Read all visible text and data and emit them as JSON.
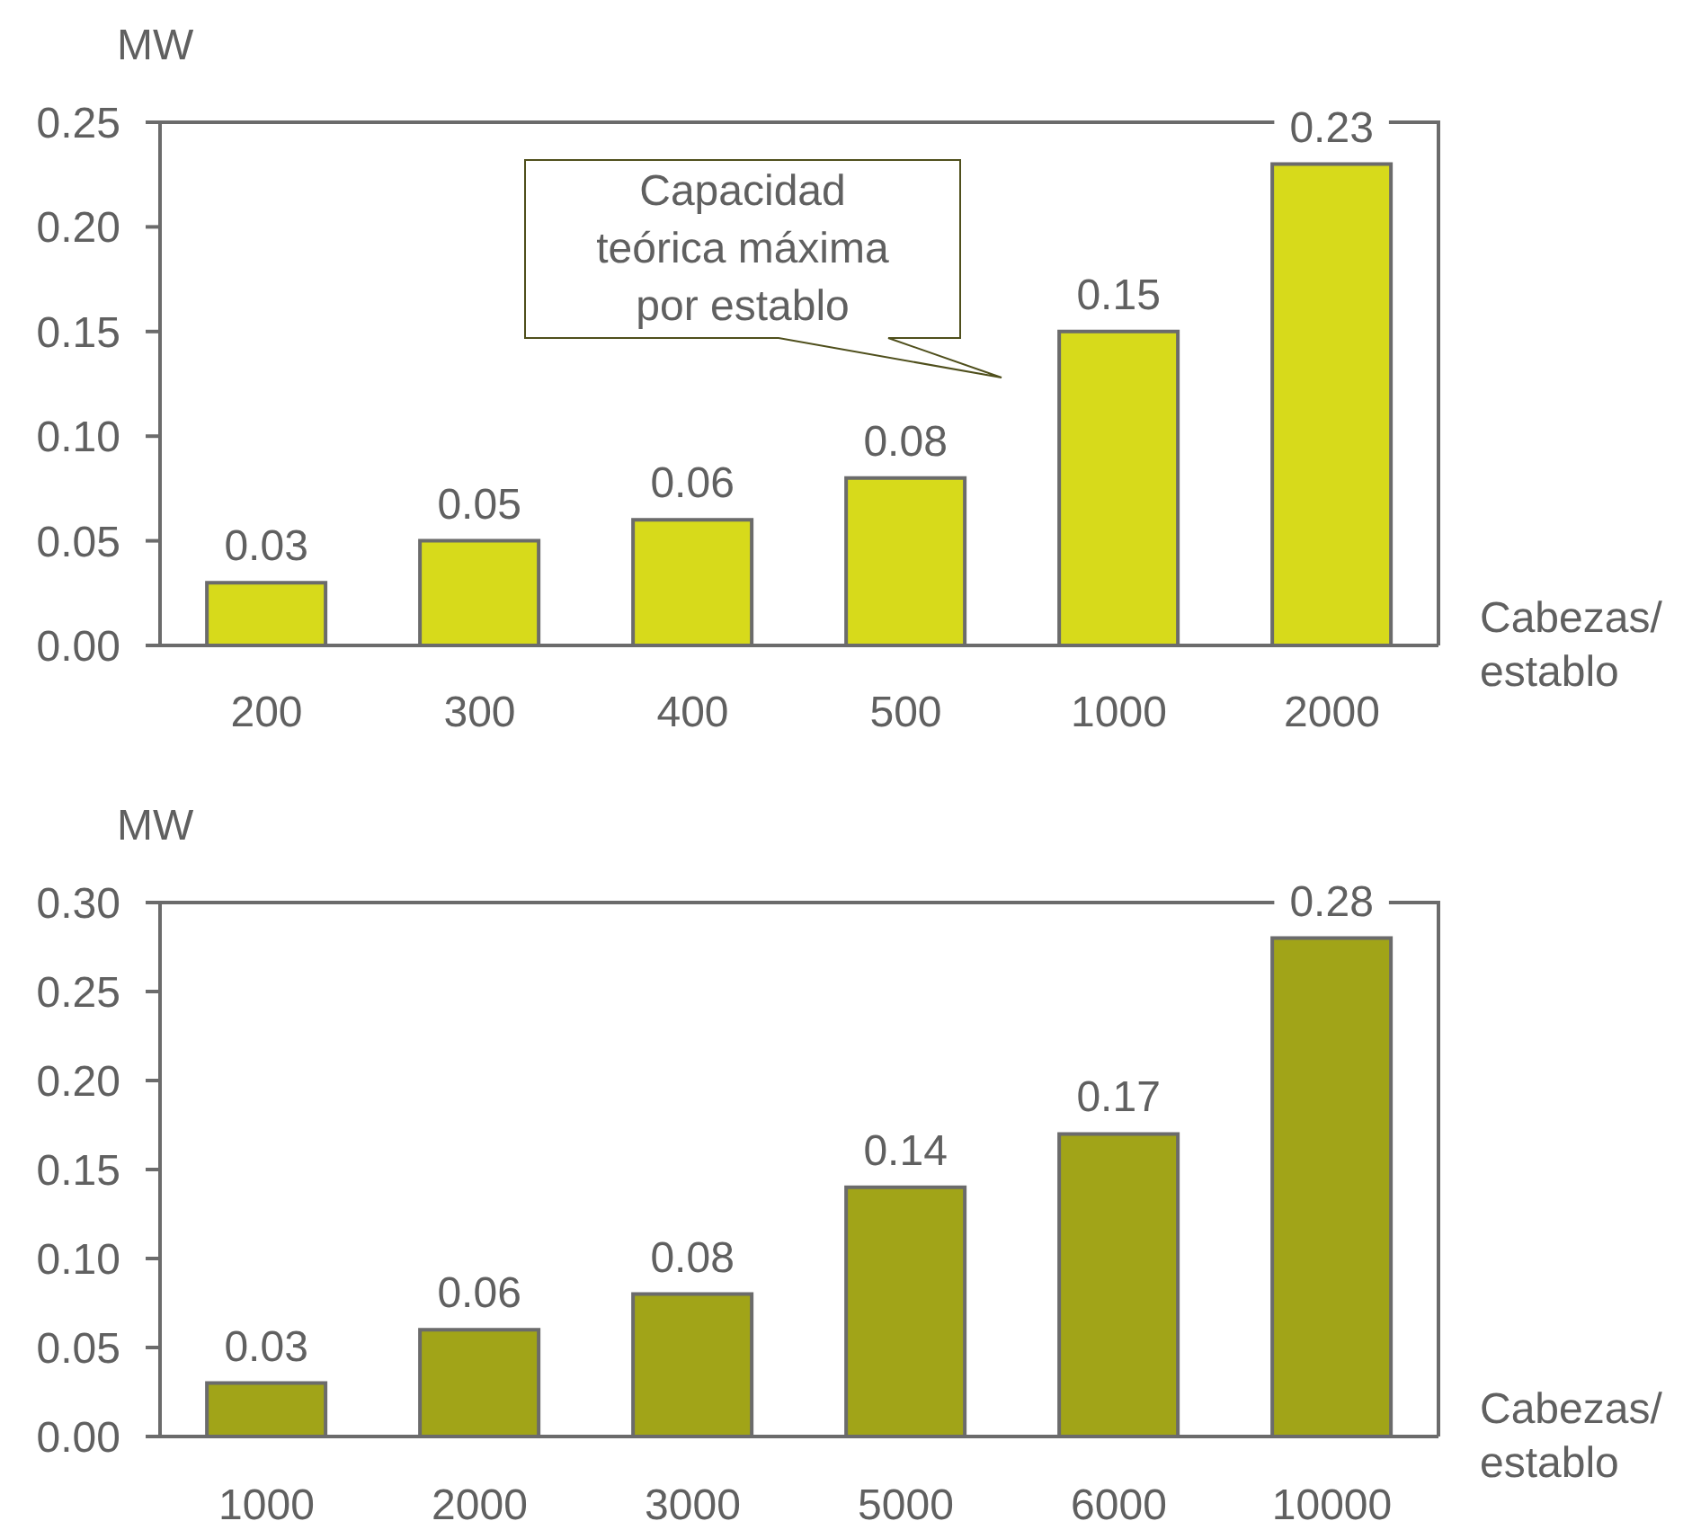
{
  "chart_data": [
    {
      "type": "bar",
      "ylabel": "MW",
      "xlabel": "Cabezas/\nestablo",
      "categories": [
        "200",
        "300",
        "400",
        "500",
        "1000",
        "2000"
      ],
      "values": [
        0.03,
        0.05,
        0.06,
        0.08,
        0.15,
        0.23
      ],
      "color": "#d7da1b",
      "ylim": [
        0,
        0.25
      ],
      "yticks": [
        {
          "value": 0,
          "label": "0.00"
        },
        0.05,
        {
          "value": 0.1,
          "label": "0.10"
        },
        0.15,
        {
          "value": 0.2,
          "label": "0.20"
        },
        0.25
      ],
      "data_labels": true,
      "annotations": [
        "Capacidad teórica máxima por establo"
      ]
    },
    {
      "type": "bar",
      "ylabel": "MW",
      "xlabel": "Cabezas/\nestablo",
      "categories": [
        "1000",
        "2000",
        "3000",
        "5000",
        "6000",
        "10000"
      ],
      "values": [
        0.03,
        0.06,
        0.08,
        0.14,
        0.17,
        0.28
      ],
      "color": "#a1a418",
      "ylim": [
        0,
        0.3
      ],
      "yticks": [
        {
          "value": 0,
          "label": "0.00"
        },
        0.05,
        {
          "value": 0.1,
          "label": "0.10"
        },
        0.15,
        {
          "value": 0.2,
          "label": "0.20"
        },
        0.25,
        {
          "value": 0.3,
          "label": "0.30"
        }
      ],
      "data_labels": true
    }
  ]
}
